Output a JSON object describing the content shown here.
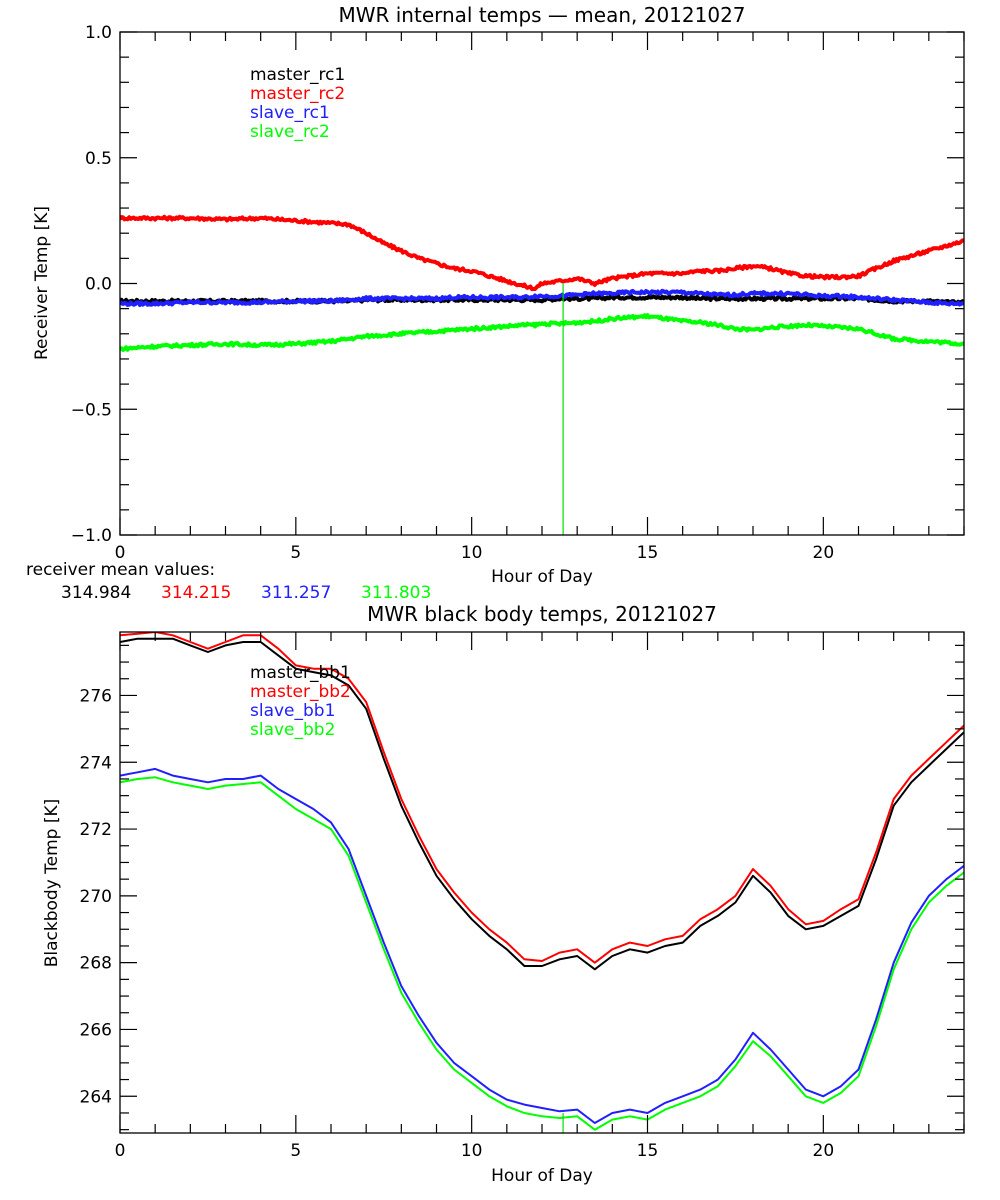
{
  "chart_data": [
    {
      "type": "line",
      "title": "MWR internal temps — mean, 20121027",
      "xlabel": "Hour of Day",
      "ylabel": "Receiver Temp [K]",
      "xlim": [
        0,
        24
      ],
      "ylim": [
        -1.0,
        1.0
      ],
      "xticks": [
        0,
        5,
        10,
        15,
        20
      ],
      "xtick_labels": [
        "0",
        "5",
        "10",
        "15",
        "20"
      ],
      "yticks": [
        -1.0,
        -0.5,
        0.0,
        0.5,
        1.0
      ],
      "ytick_labels": [
        "−1.0",
        "−0.5",
        "0.0",
        "0.5",
        "1.0"
      ],
      "grid": false,
      "legend_position": "top-left",
      "spike": {
        "x": 12.6,
        "y_from": -1.0,
        "y_to": 0.0,
        "color": "#00e000"
      },
      "x": [
        0,
        1,
        2,
        3,
        4,
        5,
        6,
        6.5,
        7,
        7.5,
        8,
        8.5,
        9,
        9.5,
        10,
        10.5,
        11,
        11.5,
        11.8,
        12,
        12.5,
        13,
        13.5,
        14,
        14.5,
        15,
        15.5,
        16,
        16.5,
        17,
        17.5,
        18,
        18.5,
        19,
        19.5,
        20,
        20.5,
        21,
        21.5,
        22,
        22.5,
        23,
        23.5,
        24
      ],
      "series": [
        {
          "name": "master_rc1",
          "color": "#000000",
          "values": [
            -0.07,
            -0.07,
            -0.07,
            -0.07,
            -0.07,
            -0.07,
            -0.07,
            -0.07,
            -0.065,
            -0.065,
            -0.065,
            -0.065,
            -0.065,
            -0.065,
            -0.065,
            -0.065,
            -0.065,
            -0.065,
            -0.065,
            -0.065,
            -0.06,
            -0.06,
            -0.06,
            -0.055,
            -0.055,
            -0.055,
            -0.055,
            -0.055,
            -0.06,
            -0.06,
            -0.06,
            -0.06,
            -0.06,
            -0.06,
            -0.06,
            -0.06,
            -0.06,
            -0.06,
            -0.065,
            -0.07,
            -0.07,
            -0.07,
            -0.075,
            -0.075
          ]
        },
        {
          "name": "master_rc2",
          "color": "#ff0000",
          "values": [
            0.26,
            0.26,
            0.26,
            0.255,
            0.26,
            0.25,
            0.24,
            0.235,
            0.2,
            0.16,
            0.13,
            0.1,
            0.08,
            0.06,
            0.05,
            0.03,
            0.01,
            -0.01,
            -0.02,
            0.0,
            0.01,
            0.02,
            0.0,
            0.02,
            0.03,
            0.04,
            0.04,
            0.04,
            0.05,
            0.05,
            0.06,
            0.07,
            0.06,
            0.04,
            0.03,
            0.025,
            0.025,
            0.03,
            0.06,
            0.09,
            0.11,
            0.13,
            0.15,
            0.17
          ]
        },
        {
          "name": "slave_rc1",
          "color": "#2020ff",
          "values": [
            -0.08,
            -0.08,
            -0.075,
            -0.075,
            -0.075,
            -0.07,
            -0.07,
            -0.065,
            -0.06,
            -0.06,
            -0.06,
            -0.06,
            -0.06,
            -0.055,
            -0.055,
            -0.055,
            -0.055,
            -0.055,
            -0.05,
            -0.05,
            -0.05,
            -0.045,
            -0.04,
            -0.04,
            -0.035,
            -0.035,
            -0.035,
            -0.035,
            -0.04,
            -0.045,
            -0.045,
            -0.04,
            -0.04,
            -0.04,
            -0.045,
            -0.05,
            -0.05,
            -0.055,
            -0.06,
            -0.065,
            -0.07,
            -0.075,
            -0.08,
            -0.08
          ]
        },
        {
          "name": "slave_rc2",
          "color": "#00ff00",
          "values": [
            -0.26,
            -0.25,
            -0.245,
            -0.24,
            -0.245,
            -0.24,
            -0.23,
            -0.22,
            -0.21,
            -0.205,
            -0.2,
            -0.195,
            -0.19,
            -0.185,
            -0.18,
            -0.175,
            -0.17,
            -0.165,
            -0.165,
            -0.16,
            -0.16,
            -0.155,
            -0.15,
            -0.14,
            -0.135,
            -0.13,
            -0.14,
            -0.15,
            -0.155,
            -0.165,
            -0.18,
            -0.185,
            -0.175,
            -0.17,
            -0.165,
            -0.17,
            -0.175,
            -0.18,
            -0.2,
            -0.22,
            -0.225,
            -0.23,
            -0.235,
            -0.24
          ]
        }
      ]
    },
    {
      "type": "line",
      "title": "MWR black body temps, 20121027",
      "xlabel": "Hour of Day",
      "ylabel": "Blackbody Temp [K]",
      "xlim": [
        0,
        24
      ],
      "ylim": [
        262.9,
        277.9
      ],
      "xticks": [
        0,
        5,
        10,
        15,
        20
      ],
      "xtick_labels": [
        "0",
        "5",
        "10",
        "15",
        "20"
      ],
      "yticks": [
        264,
        266,
        268,
        270,
        272,
        274,
        276
      ],
      "ytick_labels": [
        "264",
        "266",
        "268",
        "270",
        "272",
        "274",
        "276"
      ],
      "grid": false,
      "legend_position": "top-left",
      "spike": {
        "x": 12.6,
        "y_from": 262.9,
        "y_to": 263.5,
        "color": "#00e000"
      },
      "x": [
        0,
        0.5,
        1,
        1.5,
        2,
        2.5,
        3,
        3.5,
        4,
        4.5,
        5,
        5.5,
        6,
        6.5,
        7,
        7.5,
        8,
        8.5,
        9,
        9.5,
        10,
        10.5,
        11,
        11.5,
        12,
        12.5,
        13,
        13.5,
        14,
        14.5,
        15,
        15.5,
        16,
        16.5,
        17,
        17.5,
        18,
        18.5,
        19,
        19.5,
        20,
        20.5,
        21,
        21.5,
        22,
        22.5,
        23,
        23.5,
        24
      ],
      "series": [
        {
          "name": "master_bb1",
          "color": "#000000",
          "values": [
            277.6,
            277.7,
            277.7,
            277.7,
            277.5,
            277.3,
            277.5,
            277.6,
            277.6,
            277.2,
            276.8,
            276.7,
            276.6,
            276.3,
            275.6,
            274.1,
            272.7,
            271.6,
            270.6,
            269.9,
            269.3,
            268.8,
            268.4,
            267.9,
            267.9,
            268.1,
            268.2,
            267.8,
            268.2,
            268.4,
            268.3,
            268.5,
            268.6,
            269.1,
            269.4,
            269.8,
            270.6,
            270.1,
            269.4,
            269.0,
            269.1,
            269.4,
            269.7,
            271.1,
            272.7,
            273.4,
            273.9,
            274.4,
            274.9
          ]
        },
        {
          "name": "master_bb2",
          "color": "#ff0000",
          "values": [
            277.8,
            277.85,
            277.9,
            277.8,
            277.6,
            277.4,
            277.6,
            277.8,
            277.8,
            277.4,
            276.9,
            276.8,
            276.8,
            276.5,
            275.8,
            274.3,
            272.9,
            271.8,
            270.8,
            270.1,
            269.5,
            269.0,
            268.6,
            268.1,
            268.05,
            268.3,
            268.4,
            268.0,
            268.4,
            268.6,
            268.5,
            268.7,
            268.8,
            269.3,
            269.6,
            270.0,
            270.8,
            270.3,
            269.6,
            269.15,
            269.25,
            269.6,
            269.9,
            271.3,
            272.9,
            273.6,
            274.1,
            274.6,
            275.1
          ]
        },
        {
          "name": "slave_bb1",
          "color": "#2020ff",
          "values": [
            273.6,
            273.7,
            273.8,
            273.6,
            273.5,
            273.4,
            273.5,
            273.5,
            273.6,
            273.2,
            272.9,
            272.6,
            272.2,
            271.4,
            270.0,
            268.6,
            267.3,
            266.4,
            265.6,
            265.0,
            264.6,
            264.2,
            263.9,
            263.75,
            263.65,
            263.55,
            263.6,
            263.2,
            263.5,
            263.6,
            263.5,
            263.8,
            264.0,
            264.2,
            264.5,
            265.1,
            265.9,
            265.4,
            264.8,
            264.2,
            264.0,
            264.3,
            264.8,
            266.3,
            268.0,
            269.2,
            270.0,
            270.5,
            270.9
          ]
        },
        {
          "name": "slave_bb2",
          "color": "#00ff00",
          "values": [
            273.4,
            273.5,
            273.55,
            273.4,
            273.3,
            273.2,
            273.3,
            273.35,
            273.4,
            273.0,
            272.6,
            272.3,
            272.0,
            271.2,
            269.8,
            268.4,
            267.1,
            266.2,
            265.4,
            264.8,
            264.4,
            264.0,
            263.7,
            263.5,
            263.4,
            263.35,
            263.4,
            263.0,
            263.3,
            263.4,
            263.3,
            263.6,
            263.8,
            264.0,
            264.3,
            264.9,
            265.65,
            265.2,
            264.6,
            264.0,
            263.8,
            264.1,
            264.6,
            266.1,
            267.8,
            269.0,
            269.8,
            270.3,
            270.7
          ]
        }
      ]
    }
  ],
  "receiver_mean": {
    "label": "receiver mean values:",
    "values": [
      {
        "text": "314.984",
        "color": "#000000"
      },
      {
        "text": "314.215",
        "color": "#ff0000"
      },
      {
        "text": "311.257",
        "color": "#2020ff"
      },
      {
        "text": "311.803",
        "color": "#00ff00"
      }
    ]
  }
}
